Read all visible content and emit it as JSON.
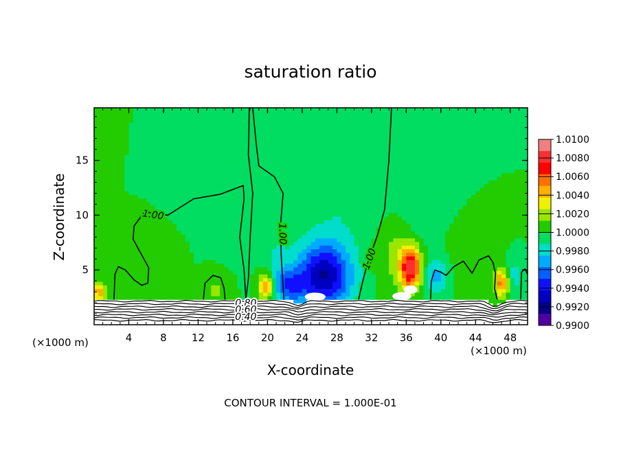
{
  "chart_data": {
    "type": "heatmap",
    "title": "saturation ratio",
    "xlabel": "X-coordinate",
    "ylabel": "Z-coordinate",
    "x_unit_left": "(×1000 m)",
    "x_unit_right": "(×1000 m)",
    "footer": "CONTOUR INTERVAL = 1.000E-01",
    "xlim": [
      0,
      50
    ],
    "ylim": [
      0,
      19.8
    ],
    "x_ticks": [
      4,
      8,
      12,
      16,
      20,
      24,
      28,
      32,
      36,
      40,
      44,
      48
    ],
    "y_ticks": [
      5,
      10,
      15
    ],
    "background_value": 1.0,
    "colorbar": {
      "ticks": [
        "1.0100",
        "1.0080",
        "1.0060",
        "1.0040",
        "1.0020",
        "1.0000",
        "0.9980",
        "0.9960",
        "0.9940",
        "0.9920",
        "0.9900"
      ],
      "bin_colors": [
        "#f08080",
        "#ff3030",
        "#ff0000",
        "#ff7000",
        "#ffb000",
        "#f0f000",
        "#9ae600",
        "#22cc00",
        "#00dd60",
        "#00ddcc",
        "#00aaff",
        "#0060ff",
        "#1010ff",
        "#0000c0",
        "#000088",
        "#5000a0"
      ],
      "bin_colors_order": "top-to-bottom"
    },
    "anomalies": [
      {
        "x": 26.5,
        "z": 4.5,
        "sx": 3.2,
        "sz": 3.0,
        "amp": -0.0075
      },
      {
        "x": 22.5,
        "z": 3.5,
        "sx": 1.6,
        "sz": 1.6,
        "amp": -0.004
      },
      {
        "x": 28.5,
        "z": 12,
        "sx": 4.5,
        "sz": 5,
        "amp": -0.0012
      },
      {
        "x": 21.0,
        "z": 6,
        "sx": 1.5,
        "sz": 3,
        "amp": -0.0012
      },
      {
        "x": 36.5,
        "z": 5.2,
        "sx": 1.2,
        "sz": 1.9,
        "amp": 0.0085
      },
      {
        "x": 34.5,
        "z": 7,
        "sx": 2.2,
        "sz": 3.5,
        "amp": 0.0018
      },
      {
        "x": 39.5,
        "z": 4.5,
        "sx": 1.3,
        "sz": 1.6,
        "amp": -0.003
      },
      {
        "x": 36.5,
        "z": 10,
        "sx": 4,
        "sz": 4,
        "amp": -0.0008
      },
      {
        "x": 19.8,
        "z": 3.5,
        "sx": 0.8,
        "sz": 1.2,
        "amp": 0.0055
      },
      {
        "x": 47.0,
        "z": 3.8,
        "sx": 0.8,
        "sz": 1.2,
        "amp": 0.0055
      },
      {
        "x": 0.6,
        "z": 3.0,
        "sx": 0.7,
        "sz": 0.8,
        "amp": 0.005
      },
      {
        "x": 14.0,
        "z": 3.0,
        "sx": 1.0,
        "sz": 0.8,
        "amp": 0.002
      },
      {
        "x": 48.5,
        "z": 4.5,
        "sx": 0.8,
        "sz": 1.5,
        "amp": -0.002
      },
      {
        "x": 43.0,
        "z": 6.5,
        "sx": 3,
        "sz": 3,
        "amp": 0.0006
      },
      {
        "x": 5.0,
        "z": 4.0,
        "sx": 1.8,
        "sz": 1.5,
        "amp": 0.0005
      }
    ],
    "contour_lines": [
      {
        "label": "1.00",
        "label_at": [
          6.8,
          10.0
        ],
        "label_angle": 8,
        "points": [
          [
            2.3,
            2.3
          ],
          [
            2.4,
            4.6
          ],
          [
            2.8,
            5.3
          ],
          [
            3.6,
            5.0
          ],
          [
            4.6,
            4.1
          ],
          [
            5.5,
            3.6
          ],
          [
            6.2,
            3.8
          ],
          [
            6.3,
            5.2
          ],
          [
            5.4,
            6.5
          ],
          [
            4.5,
            7.8
          ],
          [
            4.6,
            9.0
          ],
          [
            5.8,
            10.3
          ],
          [
            8.5,
            10.0
          ],
          [
            11.5,
            11.5
          ],
          [
            14.5,
            11.9
          ],
          [
            17.2,
            12.7
          ],
          [
            17.3,
            11.5
          ],
          [
            16.8,
            8.0
          ],
          [
            17.3,
            5.0
          ],
          [
            17.5,
            2.3
          ]
        ]
      },
      {
        "label": "1.00",
        "label_at": [
          21.7,
          8.3
        ],
        "label_angle": 88,
        "points": [
          [
            17.5,
            2.3
          ],
          [
            17.8,
            4.2
          ],
          [
            18.0,
            8.0
          ],
          [
            18.3,
            12.0
          ],
          [
            17.8,
            15.5
          ],
          [
            17.9,
            19.8
          ]
        ]
      },
      {
        "label": "",
        "label_at": null,
        "label_angle": 0,
        "points": [
          [
            18.3,
            19.8
          ],
          [
            18.7,
            16.5
          ],
          [
            19.0,
            14.5
          ],
          [
            20.8,
            13.5
          ],
          [
            21.8,
            12.0
          ],
          [
            21.5,
            9.0
          ],
          [
            21.6,
            6.0
          ],
          [
            21.9,
            2.3
          ]
        ]
      },
      {
        "label": "1.00",
        "label_at": [
          31.8,
          6.0
        ],
        "label_angle": -70,
        "points": [
          [
            34.3,
            19.8
          ],
          [
            34.0,
            15.0
          ],
          [
            33.5,
            10.5
          ],
          [
            32.7,
            8.2
          ],
          [
            31.5,
            5.5
          ],
          [
            31.0,
            4.0
          ],
          [
            30.5,
            2.3
          ]
        ]
      },
      {
        "label": "",
        "label_at": null,
        "label_angle": 0,
        "points": [
          [
            12.6,
            2.3
          ],
          [
            12.8,
            3.8
          ],
          [
            13.7,
            4.5
          ],
          [
            14.6,
            4.3
          ],
          [
            15.0,
            3.3
          ],
          [
            15.1,
            2.3
          ]
        ]
      },
      {
        "label": "",
        "label_at": null,
        "label_angle": 0,
        "points": [
          [
            38.8,
            2.3
          ],
          [
            38.9,
            4.0
          ],
          [
            39.3,
            5.0
          ],
          [
            40.0,
            4.8
          ],
          [
            40.6,
            4.5
          ],
          [
            41.5,
            5.3
          ],
          [
            42.6,
            5.8
          ],
          [
            43.6,
            4.7
          ],
          [
            44.4,
            5.9
          ],
          [
            45.5,
            6.3
          ],
          [
            46.0,
            5.7
          ],
          [
            46.3,
            4.7
          ],
          [
            46.2,
            3.3
          ],
          [
            46.5,
            2.3
          ]
        ]
      },
      {
        "label": "",
        "label_at": null,
        "label_angle": 0,
        "points": [
          [
            49.2,
            2.3
          ],
          [
            49.3,
            4.8
          ],
          [
            49.7,
            5.1
          ],
          [
            50.0,
            4.6
          ]
        ]
      }
    ],
    "bottom_contours": {
      "labels": [
        "0.80",
        "0.60",
        "0.40"
      ],
      "label_x": 17.5,
      "label_z": [
        1.95,
        1.35,
        0.7
      ],
      "line_count": 8
    }
  }
}
